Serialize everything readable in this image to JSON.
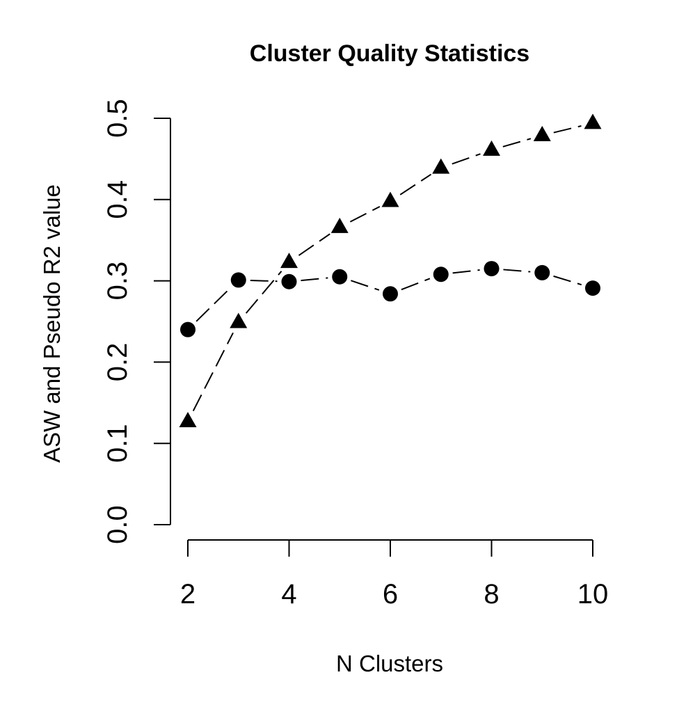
{
  "chart_data": {
    "type": "line",
    "title": "Cluster Quality Statistics",
    "xlabel": "N Clusters",
    "ylabel": "ASW and Pseudo R2 value",
    "xlim": [
      2,
      10
    ],
    "ylim": [
      0.0,
      0.5
    ],
    "x_ticks": [
      "2",
      "4",
      "6",
      "8",
      "10"
    ],
    "y_ticks": [
      "0.0",
      "0.1",
      "0.2",
      "0.3",
      "0.4",
      "0.5"
    ],
    "grid": false,
    "legend": "none",
    "x": [
      2,
      3,
      4,
      5,
      6,
      7,
      8,
      9,
      10
    ],
    "series": [
      {
        "marker": "circle",
        "line_style": "dashed",
        "color": "#000000",
        "values": [
          0.24,
          0.301,
          0.299,
          0.305,
          0.284,
          0.308,
          0.315,
          0.31,
          0.291
        ]
      },
      {
        "marker": "triangle",
        "line_style": "dashed",
        "color": "#000000",
        "values": [
          0.127,
          0.249,
          0.323,
          0.366,
          0.398,
          0.439,
          0.461,
          0.479,
          0.494
        ]
      }
    ]
  }
}
